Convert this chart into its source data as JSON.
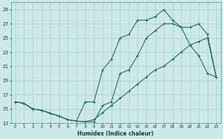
{
  "xlabel": "Humidex (Indice chaleur)",
  "bg_color": "#cce8e8",
  "grid_color": "#a8cccc",
  "line_color": "#1a6b5a",
  "xlim": [
    -0.5,
    23.5
  ],
  "ylim": [
    13,
    30
  ],
  "xticks": [
    0,
    1,
    2,
    3,
    4,
    5,
    6,
    7,
    8,
    9,
    10,
    11,
    12,
    13,
    14,
    15,
    16,
    17,
    18,
    19,
    20,
    21,
    22,
    23
  ],
  "yticks": [
    13,
    15,
    17,
    19,
    21,
    23,
    25,
    27,
    29
  ],
  "curve1_x": [
    0,
    1,
    2,
    3,
    4,
    5,
    6,
    7,
    8,
    9,
    10,
    11,
    12,
    13,
    14,
    15,
    16,
    17,
    18,
    19,
    20,
    21,
    22,
    23
  ],
  "curve1_y": [
    16.0,
    15.8,
    15.0,
    14.8,
    14.4,
    14.0,
    13.5,
    13.3,
    16.0,
    16.0,
    20.5,
    22.0,
    25.0,
    25.5,
    27.5,
    27.5,
    28.0,
    29.0,
    27.5,
    26.5,
    24.0,
    22.5,
    20.0,
    19.5
  ],
  "curve2_x": [
    0,
    1,
    2,
    3,
    4,
    5,
    6,
    7,
    8,
    9,
    10,
    11,
    12,
    13,
    14,
    15,
    16,
    17,
    18,
    19,
    20,
    21,
    22,
    23
  ],
  "curve2_y": [
    16.0,
    15.8,
    15.0,
    14.8,
    14.4,
    14.0,
    13.5,
    13.3,
    13.2,
    13.2,
    15.5,
    16.0,
    20.0,
    20.5,
    22.5,
    25.0,
    26.0,
    27.0,
    27.0,
    26.5,
    26.5,
    27.0,
    25.5,
    19.5
  ],
  "curve3_x": [
    0,
    1,
    2,
    3,
    4,
    5,
    6,
    7,
    8,
    9,
    10,
    11,
    12,
    13,
    14,
    15,
    16,
    17,
    18,
    19,
    20,
    21,
    22,
    23
  ],
  "curve3_y": [
    16.0,
    15.8,
    15.0,
    14.8,
    14.4,
    14.0,
    13.5,
    13.3,
    13.2,
    13.5,
    14.5,
    15.5,
    16.5,
    17.5,
    18.5,
    19.5,
    20.5,
    21.0,
    22.0,
    23.0,
    24.0,
    24.5,
    25.0,
    19.5
  ]
}
